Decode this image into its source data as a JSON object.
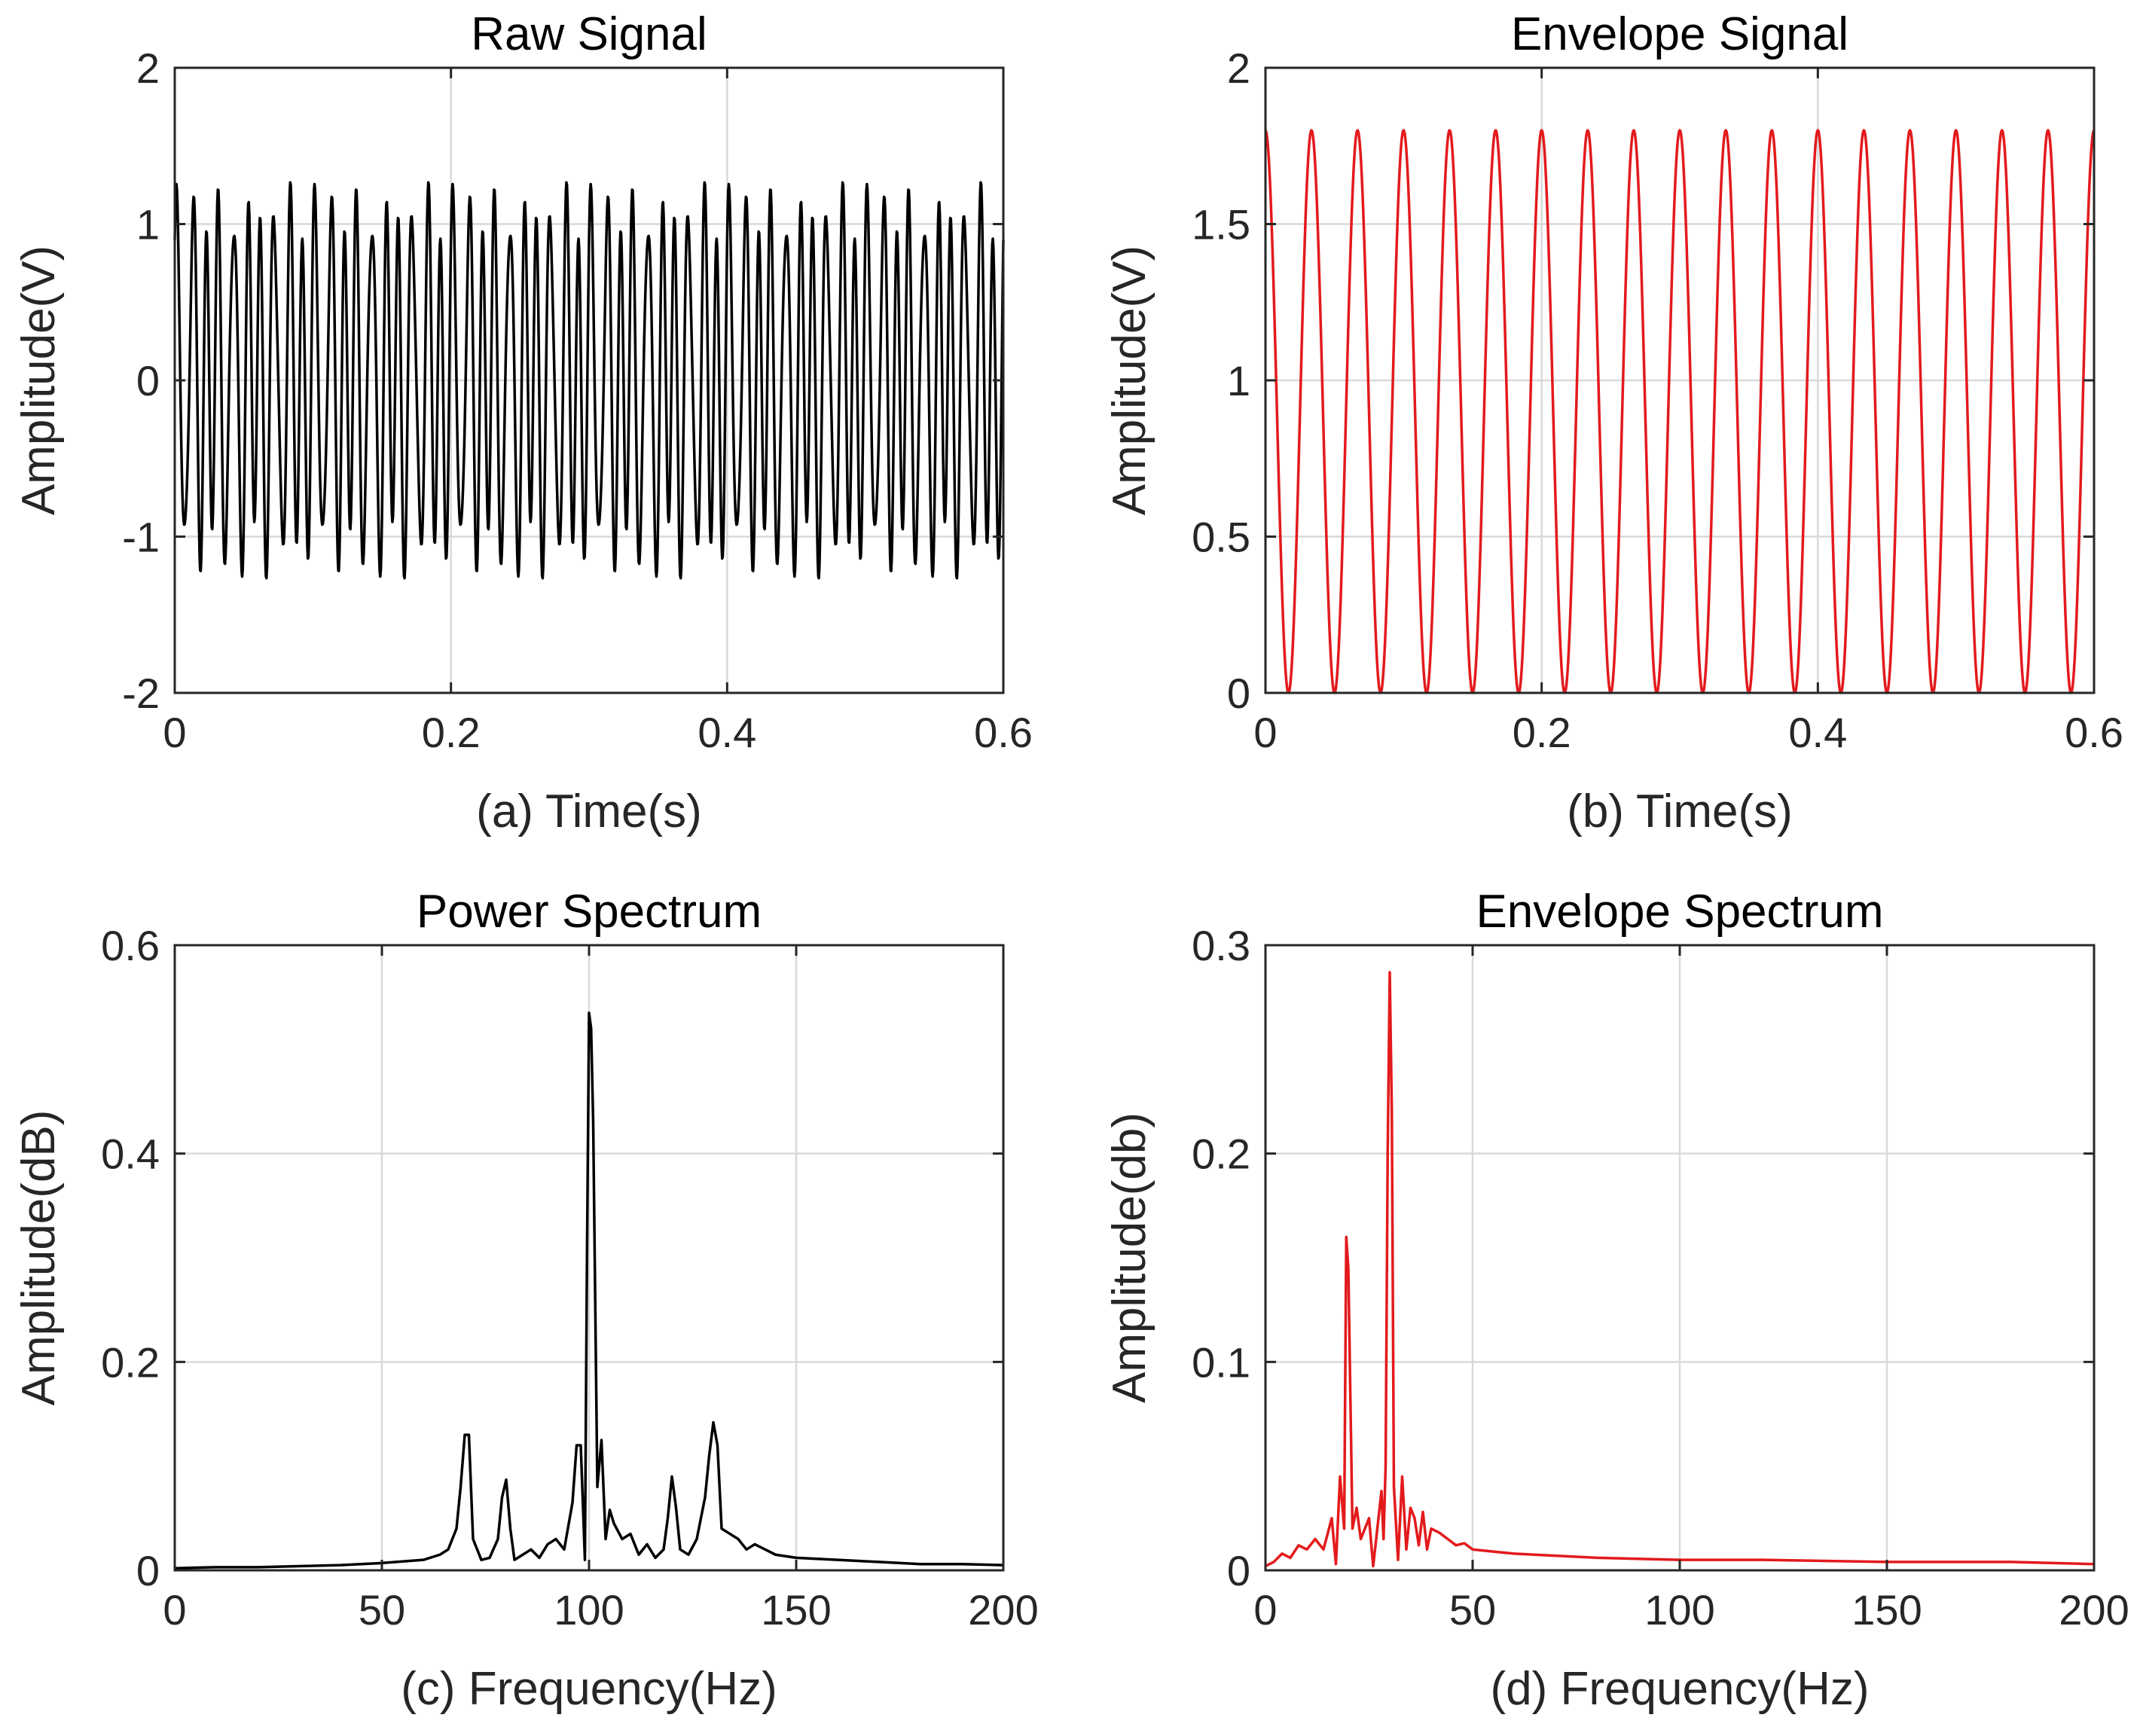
{
  "chart_data": [
    {
      "type": "line",
      "title": "Raw Signal",
      "xlabel": "(a) Time(s)",
      "ylabel": "Amplitude(V)",
      "xlim": [
        0,
        0.6
      ],
      "ylim": [
        -2,
        2
      ],
      "xticks": [
        0,
        0.2,
        0.4,
        0.6
      ],
      "xtick_labels": [
        "0",
        "0.2",
        "0.4",
        "0.6"
      ],
      "yticks": [
        -2,
        -1,
        0,
        1,
        2
      ],
      "ytick_labels": [
        "-2",
        "-1",
        "0",
        "1",
        "2"
      ],
      "grid": true,
      "color": "#000000",
      "series": [
        {
          "name": "raw signal",
          "formula": "0.9*sin(2*pi*100*t) + 0.45*sin(2*pi*70*t+pi/2) + 0.45*sin(2*pi*130*t+pi/2)",
          "x": [
            0,
            0.6
          ],
          "samples": 1500
        }
      ]
    },
    {
      "type": "line",
      "title": "Envelope Signal",
      "xlabel": "(b) Time(s)",
      "ylabel": "Amplitude(V)",
      "xlim": [
        0,
        0.6
      ],
      "ylim": [
        0,
        2
      ],
      "xticks": [
        0,
        0.2,
        0.4,
        0.6
      ],
      "xtick_labels": [
        "0",
        "0.2",
        "0.4",
        "0.6"
      ],
      "yticks": [
        0,
        0.5,
        1,
        1.5,
        2
      ],
      "ytick_labels": [
        "0",
        "0.5",
        "1",
        "1.5",
        "2"
      ],
      "grid": true,
      "color": "#e31a1c",
      "series": [
        {
          "name": "envelope",
          "formula": "abs(0.9 + 0.9*cos(2*pi*30*t))",
          "x": [
            0,
            0.6
          ],
          "samples": 1500
        }
      ]
    },
    {
      "type": "line",
      "title": "Power Spectrum",
      "xlabel": "(c) Frequency(Hz)",
      "ylabel": "Amplitude(dB)",
      "xlim": [
        0,
        200
      ],
      "ylim": [
        0,
        0.6
      ],
      "xticks": [
        0,
        50,
        100,
        150,
        200
      ],
      "xtick_labels": [
        "0",
        "50",
        "100",
        "150",
        "200"
      ],
      "yticks": [
        0,
        0.2,
        0.4,
        0.6
      ],
      "ytick_labels": [
        "0",
        "0.2",
        "0.4",
        "0.6"
      ],
      "grid": true,
      "color": "#000000",
      "series": [
        {
          "name": "power spectrum",
          "x": [
            0,
            10,
            20,
            30,
            40,
            50,
            60,
            64,
            66,
            68,
            69,
            70,
            71,
            72,
            74,
            76,
            78,
            79,
            80,
            81,
            82,
            84,
            86,
            88,
            90,
            92,
            94,
            96,
            97,
            98,
            99,
            99.5,
            100,
            100.5,
            101,
            102,
            103,
            104,
            105,
            106,
            108,
            110,
            112,
            114,
            116,
            118,
            119,
            120,
            121,
            122,
            124,
            126,
            128,
            129,
            130,
            131,
            132,
            134,
            136,
            138,
            140,
            145,
            150,
            160,
            170,
            180,
            190,
            200
          ],
          "y": [
            0.002,
            0.003,
            0.003,
            0.004,
            0.005,
            0.007,
            0.01,
            0.015,
            0.02,
            0.04,
            0.08,
            0.13,
            0.13,
            0.03,
            0.01,
            0.012,
            0.03,
            0.07,
            0.087,
            0.04,
            0.01,
            0.015,
            0.02,
            0.012,
            0.025,
            0.03,
            0.02,
            0.065,
            0.12,
            0.12,
            0.01,
            0.3,
            0.535,
            0.52,
            0.43,
            0.08,
            0.125,
            0.03,
            0.058,
            0.045,
            0.03,
            0.035,
            0.015,
            0.025,
            0.012,
            0.02,
            0.05,
            0.09,
            0.06,
            0.02,
            0.015,
            0.03,
            0.07,
            0.11,
            0.142,
            0.12,
            0.04,
            0.035,
            0.03,
            0.02,
            0.025,
            0.015,
            0.012,
            0.01,
            0.008,
            0.006,
            0.006,
            0.005
          ]
        }
      ]
    },
    {
      "type": "line",
      "title": "Envelope Spectrum",
      "xlabel": "(d) Frequency(Hz)",
      "ylabel": "Amplitude(db)",
      "xlim": [
        0,
        200
      ],
      "ylim": [
        0,
        0.3
      ],
      "xticks": [
        0,
        50,
        100,
        150,
        200
      ],
      "xtick_labels": [
        "0",
        "50",
        "100",
        "150",
        "200"
      ],
      "yticks": [
        0,
        0.1,
        0.2,
        0.3
      ],
      "ytick_labels": [
        "0",
        "0.1",
        "0.2",
        "0.3"
      ],
      "grid": true,
      "color": "#e31a1c",
      "series": [
        {
          "name": "envelope spectrum",
          "x": [
            0,
            2,
            4,
            6,
            8,
            10,
            12,
            14,
            16,
            17,
            18,
            19,
            19.5,
            20,
            21,
            22,
            23,
            24,
            25,
            26,
            27,
            28,
            28.5,
            29,
            29.5,
            30,
            30.5,
            31,
            32,
            33,
            34,
            35,
            36,
            37,
            38,
            39,
            40,
            42,
            44,
            46,
            48,
            50,
            55,
            60,
            70,
            80,
            100,
            120,
            150,
            180,
            200
          ],
          "y": [
            0.002,
            0.004,
            0.008,
            0.006,
            0.012,
            0.01,
            0.015,
            0.01,
            0.025,
            0.003,
            0.045,
            0.02,
            0.16,
            0.145,
            0.02,
            0.03,
            0.015,
            0.02,
            0.025,
            0.002,
            0.02,
            0.038,
            0.015,
            0.05,
            0.2,
            0.287,
            0.22,
            0.04,
            0.005,
            0.045,
            0.01,
            0.03,
            0.025,
            0.012,
            0.028,
            0.01,
            0.02,
            0.018,
            0.015,
            0.012,
            0.013,
            0.01,
            0.009,
            0.008,
            0.007,
            0.006,
            0.005,
            0.005,
            0.004,
            0.004,
            0.003
          ]
        }
      ]
    }
  ]
}
